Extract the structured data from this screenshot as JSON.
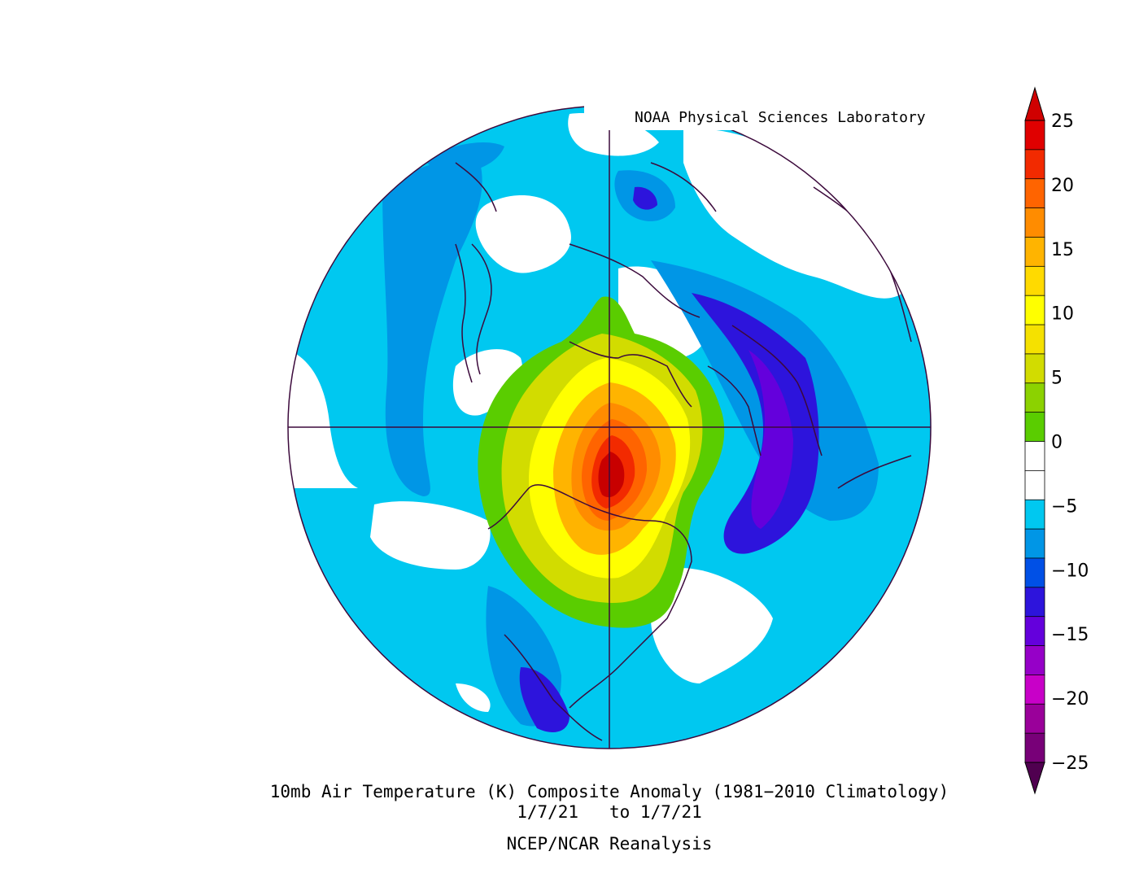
{
  "credit": "NOAA Physical Sciences Laboratory",
  "title": "10mb Air Temperature (K) Composite Anomaly (1981−2010 Climatology)",
  "date_range": "1/7/21   to 1/7/21",
  "source": "NCEP/NCAR Reanalysis",
  "map": {
    "projection": "north polar stereographic",
    "field": "10mb air temperature anomaly",
    "units": "K"
  },
  "colorbar": {
    "labels": [
      "25",
      "20",
      "15",
      "10",
      "5",
      "0",
      "−5",
      "−10",
      "−15",
      "−20",
      "−25"
    ],
    "colors_top_to_bottom": [
      "#e00000",
      "#f22a00",
      "#ff6400",
      "#ff8c00",
      "#ffb400",
      "#ffda00",
      "#ffff00",
      "#f5e100",
      "#d2dc00",
      "#8cd200",
      "#5acd00",
      "#ffffff",
      "#ffffff",
      "#00c8f0",
      "#0096e6",
      "#0050e6",
      "#2d14dc",
      "#6400dc",
      "#9600c8",
      "#c800c8",
      "#9a009a",
      "#780078"
    ],
    "top_arrow_color": "#d00000",
    "bottom_arrow_color": "#500050"
  }
}
